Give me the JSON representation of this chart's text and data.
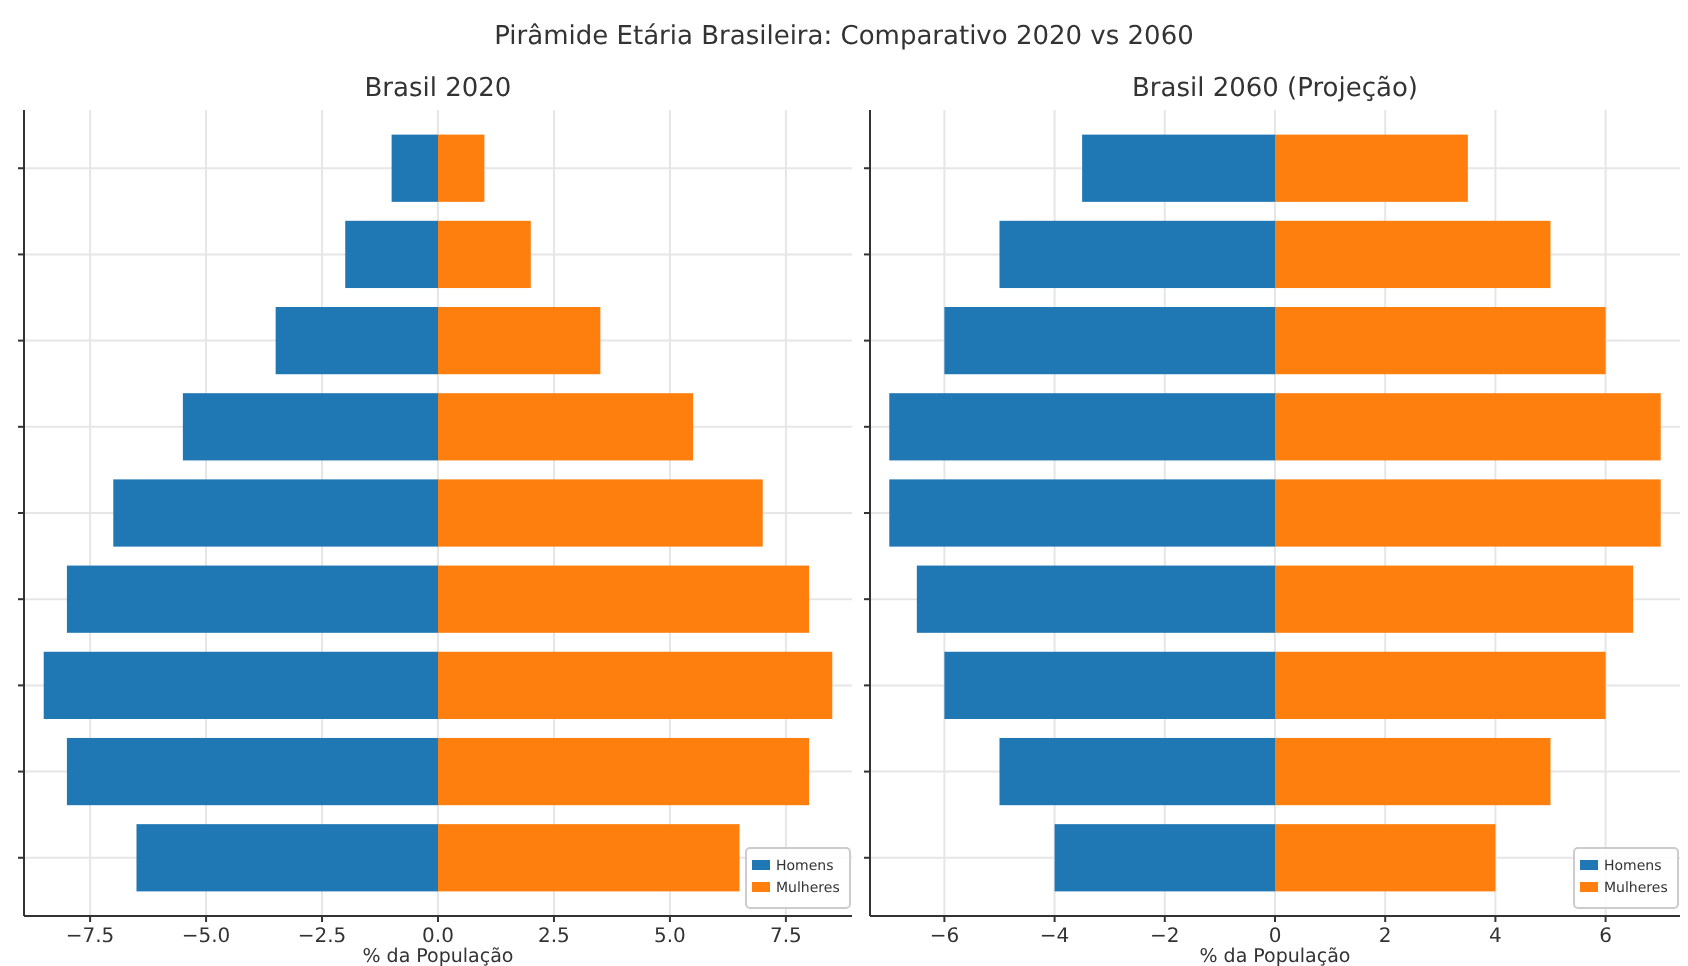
{
  "chart_data": [
    {
      "type": "bar",
      "orientation": "horizontal",
      "stacked": true,
      "title": "Brasil 2020",
      "xlabel": "% da População",
      "annotations": [
        "Pirâmide Etária Brasileira: Comparativo 2020 vs 2060"
      ],
      "categories": [
        null,
        null,
        null,
        null,
        null,
        null,
        null,
        null,
        null
      ],
      "series": [
        {
          "name": "Homens",
          "color": "#1f77b4",
          "values": [
            -1,
            -2,
            -3.5,
            -5.5,
            -7,
            -8,
            -8.5,
            -8,
            -6.5
          ]
        },
        {
          "name": "Mulheres",
          "color": "#ff7f0e",
          "values": [
            1,
            2,
            3.5,
            5.5,
            7,
            8,
            8.5,
            8,
            6.5
          ]
        }
      ],
      "xlim": [
        -8.925,
        8.925
      ],
      "xticks": [
        {
          "value": -7.5,
          "label": "−7.5"
        },
        {
          "value": -5,
          "label": "−5.0"
        },
        {
          "value": -2.5,
          "label": "−2.5"
        },
        {
          "value": 0,
          "label": "0.0"
        },
        {
          "value": 2.5,
          "label": "2.5"
        },
        {
          "value": 5,
          "label": "5.0"
        },
        {
          "value": 7.5,
          "label": "7.5"
        }
      ],
      "grid": true,
      "legend": "bottom right"
    },
    {
      "type": "bar",
      "orientation": "horizontal",
      "stacked": true,
      "title": "Brasil 2060 (Projeção)",
      "xlabel": "% da População",
      "categories": [
        null,
        null,
        null,
        null,
        null,
        null,
        null,
        null,
        null
      ],
      "series": [
        {
          "name": "Homens",
          "color": "#1f77b4",
          "values": [
            -3.5,
            -5,
            -6,
            -7,
            -7,
            -6.5,
            -6,
            -5,
            -4
          ]
        },
        {
          "name": "Mulheres",
          "color": "#ff7f0e",
          "values": [
            3.5,
            5,
            6,
            7,
            7,
            6.5,
            6,
            5,
            4
          ]
        }
      ],
      "xlim": [
        -7.35,
        7.35
      ],
      "xticks": [
        {
          "value": -6,
          "label": "−6"
        },
        {
          "value": -4,
          "label": "−4"
        },
        {
          "value": -2,
          "label": "−2"
        },
        0,
        2,
        4,
        6
      ],
      "grid": true,
      "legend": "bottom right"
    }
  ]
}
